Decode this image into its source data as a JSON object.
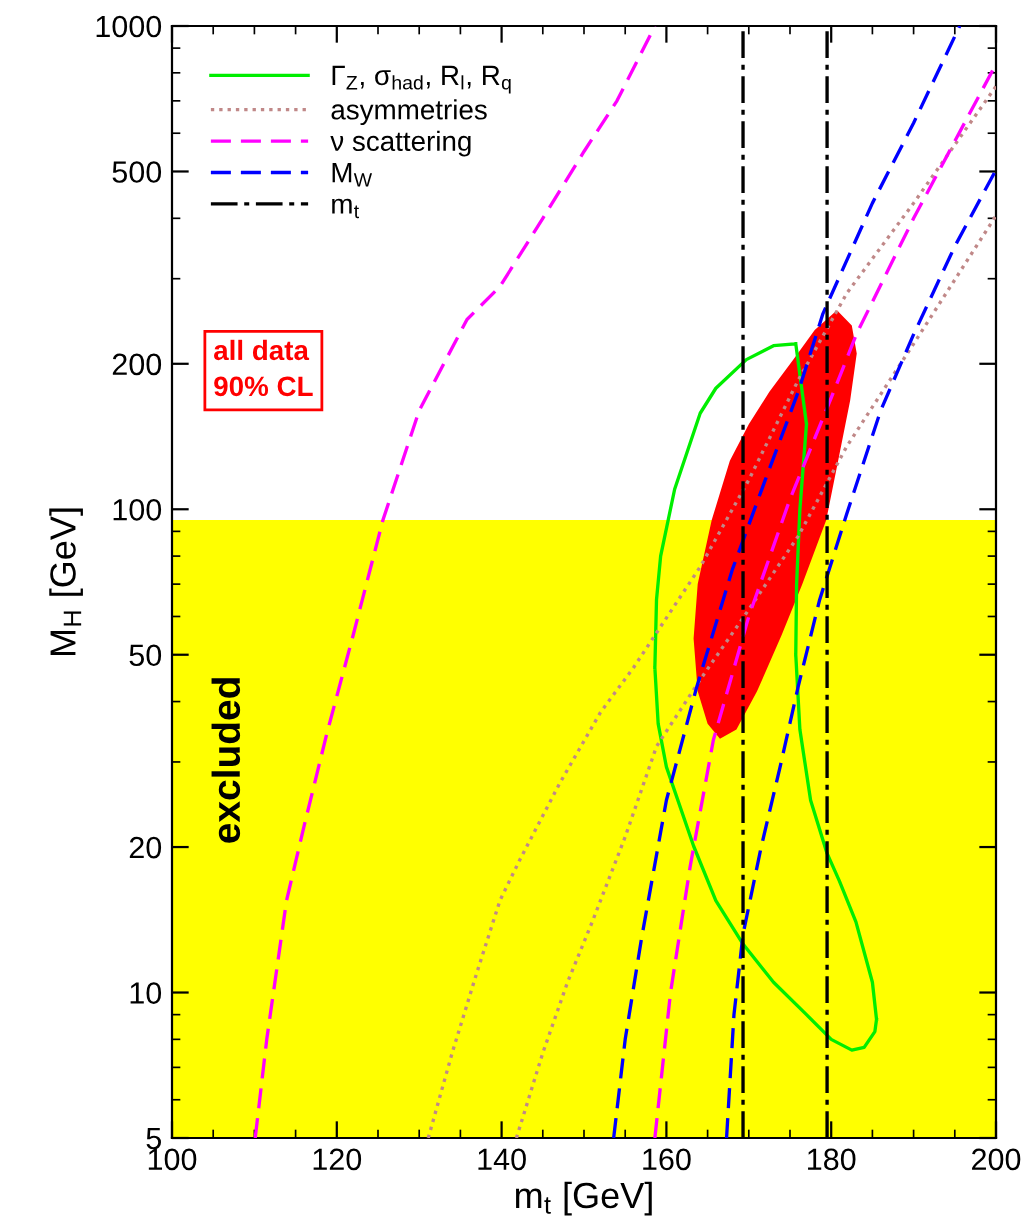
{
  "chart_data": {
    "type": "line",
    "xlabel": "m$_{t}$ [GeV]",
    "ylabel": "M$_{H}$ [GeV]",
    "log": "y",
    "xlim": [
      100,
      200
    ],
    "ylim": [
      5,
      1000
    ],
    "xticks": [
      100,
      120,
      140,
      160,
      180,
      200
    ],
    "yticks": [
      5,
      10,
      20,
      50,
      100,
      200,
      500,
      1000
    ],
    "grid": false,
    "legend": "top left",
    "marker": "none",
    "bands": [
      {
        "axis": "y",
        "from": 5,
        "to": 95,
        "label": "excluded",
        "color": "#ffff00"
      }
    ],
    "annotations": [
      "all data\n90% CL"
    ],
    "series": [
      {
        "type": "area",
        "color": "#ff0000",
        "x": [
          180.7,
          182.5,
          183.1,
          182.3,
          181,
          179.4,
          176.5,
          174,
          171,
          168.5,
          166.5,
          165,
          163.8,
          163.3,
          163.8,
          165.5,
          167.7,
          170,
          172.5,
          175.5,
          178,
          180.7
        ],
        "values": [
          258,
          240,
          210,
          168,
          130,
          95,
          70,
          55,
          42,
          35,
          33.5,
          36,
          42,
          54,
          70,
          95,
          126,
          150,
          175,
          205,
          235,
          258
        ]
      },
      {
        "name": "Γ$_{Z}$, σ$_{had}$, R$_{l}$, R$_{q}$",
        "color": "#00ee00",
        "line_style": "solid",
        "x": [
          175.7,
          173,
          169.7,
          166,
          164.1,
          161,
          159.3,
          158.8,
          158.6,
          null,
          158.6,
          159,
          160,
          163.3,
          166,
          169.3,
          173,
          177,
          180,
          182.5,
          184,
          185.3,
          185.5,
          null,
          185.5,
          185,
          183,
          181,
          179.5,
          177.5,
          176.2,
          175.7,
          null,
          175.7,
          175.8,
          176.2,
          177,
          null,
          177,
          175.7
        ],
        "values": [
          220,
          218,
          204,
          178,
          158,
          110,
          80,
          65,
          47,
          null,
          47,
          36,
          29.3,
          20.1,
          15.5,
          12.6,
          10.5,
          9,
          8,
          7.6,
          7.7,
          8.3,
          8.8,
          null,
          8.8,
          10.5,
          14,
          17,
          19.4,
          25,
          35,
          50,
          null,
          50,
          70,
          100,
          150,
          null,
          150,
          220
        ]
      },
      {
        "name": "asymmetries",
        "color": "#c08888",
        "line_style": "dotted",
        "x": [
          131.1,
          134,
          137,
          139.8,
          142.2,
          147,
          152,
          156,
          164.1,
          170,
          176,
          181.9,
          190,
          200,
          null,
          141.8,
          145,
          148,
          151,
          155,
          158.8,
          164.1,
          170,
          176,
          181.9,
          190,
          200
        ],
        "values": [
          5,
          7.5,
          11,
          15.5,
          18.8,
          27,
          38,
          47,
          76,
          115,
          185,
          280,
          430,
          750,
          null,
          5,
          7.5,
          10.5,
          14,
          21,
          32.3,
          44.4,
          62,
          88,
          135,
          220,
          405
        ]
      },
      {
        "name": "ν scattering",
        "color": "#ff00ff",
        "line_style": "dashed",
        "x": [
          110.1,
          111.5,
          113.9,
          116,
          118.8,
          122,
          125.6,
          130,
          135.8,
          139.8,
          145,
          150,
          154,
          158.6,
          null,
          158.6,
          160.5,
          162.9,
          165.7,
          170,
          175,
          180,
          183.1,
          190,
          200
        ],
        "values": [
          5,
          8,
          15.5,
          22,
          34.4,
          55,
          95,
          160,
          247,
          289,
          400,
          550,
          700,
          1000,
          null,
          5,
          10,
          18.3,
          33.3,
          60,
          105,
          170,
          231,
          400,
          834
        ]
      },
      {
        "name": "M$_{W}$",
        "color": "#0000ff",
        "line_style": "dashed",
        "x": [
          153.6,
          155,
          157,
          160,
          163.7,
          168,
          172,
          176,
          179,
          185,
          190,
          195.6,
          null,
          167.3,
          168.2,
          169.3,
          171.5,
          173.8,
          176,
          178.6,
          181.9,
          186,
          190,
          195,
          200
        ],
        "values": [
          5,
          8,
          13,
          25,
          43,
          75,
          115,
          175,
          254,
          430,
          630,
          1000,
          null,
          5,
          9,
          13.2,
          20,
          29.3,
          43,
          65,
          98,
          160,
          230,
          350,
          504
        ]
      },
      {
        "name": "m$_{t}$",
        "color": "#000000",
        "line_style": "dashdot",
        "x": [
          169.3,
          169.3,
          null,
          179.5,
          179.5
        ],
        "values": [
          5,
          1000,
          null,
          5,
          1000
        ]
      }
    ]
  }
}
